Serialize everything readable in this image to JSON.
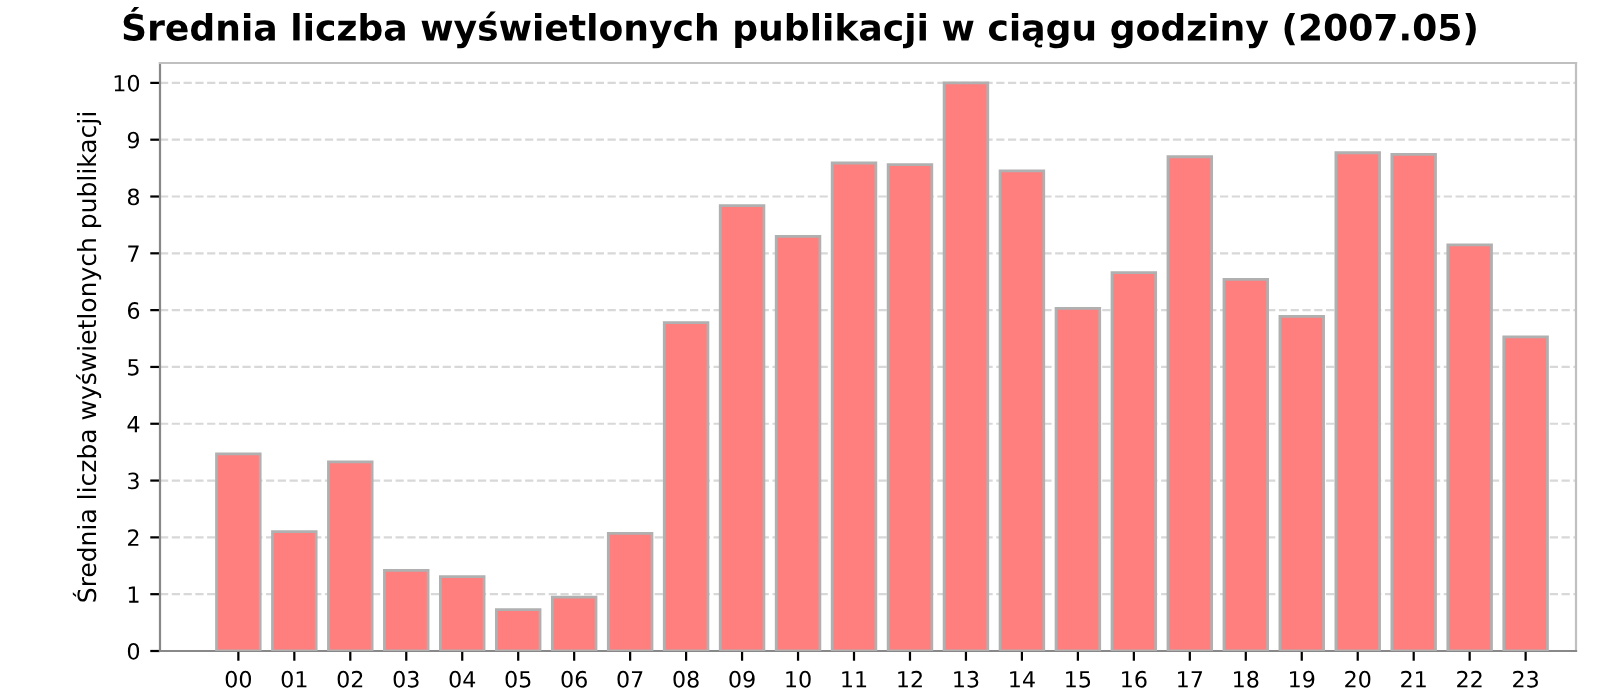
{
  "chart_data": {
    "type": "bar",
    "title": "Średnia liczba wyświetlonych publikacji w ciągu godziny (2007.05)",
    "ylabel": "Średnia liczba wyświetlonych publikacji",
    "categories": [
      "00",
      "01",
      "02",
      "03",
      "04",
      "05",
      "06",
      "07",
      "08",
      "09",
      "10",
      "11",
      "12",
      "13",
      "14",
      "15",
      "16",
      "17",
      "18",
      "19",
      "20",
      "21",
      "22",
      "23"
    ],
    "values": [
      3.47,
      2.1,
      3.33,
      1.42,
      1.31,
      0.73,
      0.95,
      2.07,
      5.78,
      7.84,
      7.3,
      8.59,
      8.56,
      10.0,
      8.45,
      6.03,
      6.66,
      8.7,
      6.54,
      5.89,
      8.77,
      8.74,
      7.15,
      5.53
    ],
    "color": "#ff7f7f",
    "ylim": [
      0,
      10.35
    ],
    "yticks": [
      0,
      1,
      2,
      3,
      4,
      5,
      6,
      7,
      8,
      9,
      10
    ],
    "grid": "y"
  }
}
